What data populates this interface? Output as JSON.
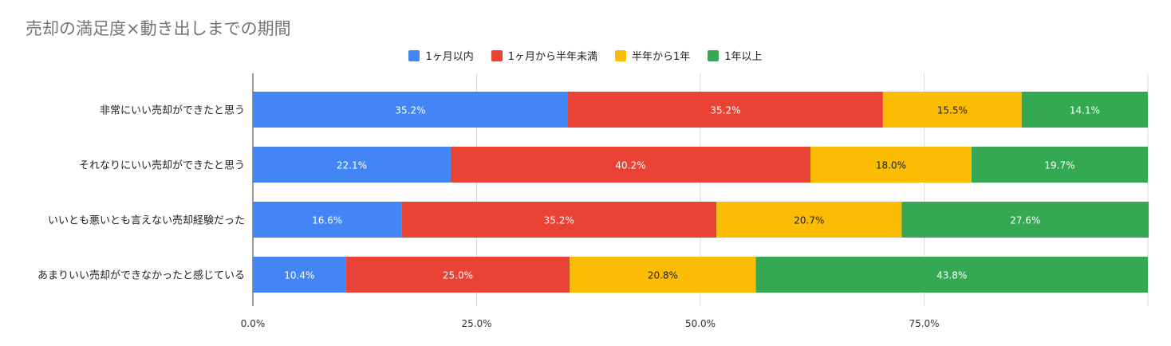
{
  "title": "売却の満足度×動き出しまでの期間",
  "chart_data": {
    "type": "bar",
    "orientation": "horizontal",
    "stacked": "percent",
    "title": "売却の満足度×動き出しまでの期間",
    "xlim": [
      0,
      100
    ],
    "x_ticks": [
      "0.0%",
      "25.0%",
      "50.0%",
      "75.0%"
    ],
    "grid": true,
    "legend_position": "top",
    "categories": [
      "非常にいい売却ができたと思う",
      "それなりにいい売却ができたと思う",
      "いいとも悪いとも言えない売却経験だった",
      "あまりいい売却ができなかったと感じている"
    ],
    "series": [
      {
        "name": "1ヶ月以内",
        "color": "#4285f4",
        "label_color": "#ffffff",
        "values": [
          35.2,
          22.1,
          16.6,
          10.4
        ],
        "labels": [
          "35.2%",
          "22.1%",
          "16.6%",
          "10.4%"
        ]
      },
      {
        "name": "1ヶ月から半年未満",
        "color": "#ea4335",
        "label_color": "#ffffff",
        "values": [
          35.2,
          40.2,
          35.2,
          25.0
        ],
        "labels": [
          "35.2%",
          "40.2%",
          "35.2%",
          "25.0%"
        ]
      },
      {
        "name": "半年から1年",
        "color": "#fbbc04",
        "label_color": "#222222",
        "values": [
          15.5,
          18.0,
          20.7,
          20.8
        ],
        "labels": [
          "15.5%",
          "18.0%",
          "20.7%",
          "20.8%"
        ]
      },
      {
        "name": "1年以上",
        "color": "#34a853",
        "label_color": "#ffffff",
        "values": [
          14.1,
          19.7,
          27.6,
          43.8
        ],
        "labels": [
          "14.1%",
          "19.7%",
          "27.6%",
          "43.8%"
        ]
      }
    ]
  }
}
